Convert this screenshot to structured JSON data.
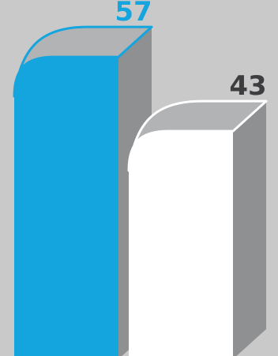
{
  "colors": {
    "background": "#c9c9ca",
    "accent": "#14a5de",
    "white": "#ffffff",
    "side": "#8f9092",
    "top": "#b2b3b5",
    "label_dark": "#3d3d3f"
  },
  "chart_data": {
    "type": "bar",
    "style": "3d-rounded-columns",
    "series": [
      {
        "values": [
          57,
          43
        ]
      }
    ],
    "data_labels": [
      "57",
      "43"
    ],
    "bar_colors": [
      "#14a5de",
      "#ffffff"
    ],
    "label_colors": [
      "#14a5de",
      "#3d3d3f"
    ],
    "ylim": [
      0,
      60
    ],
    "grid": false,
    "legend": "none"
  }
}
